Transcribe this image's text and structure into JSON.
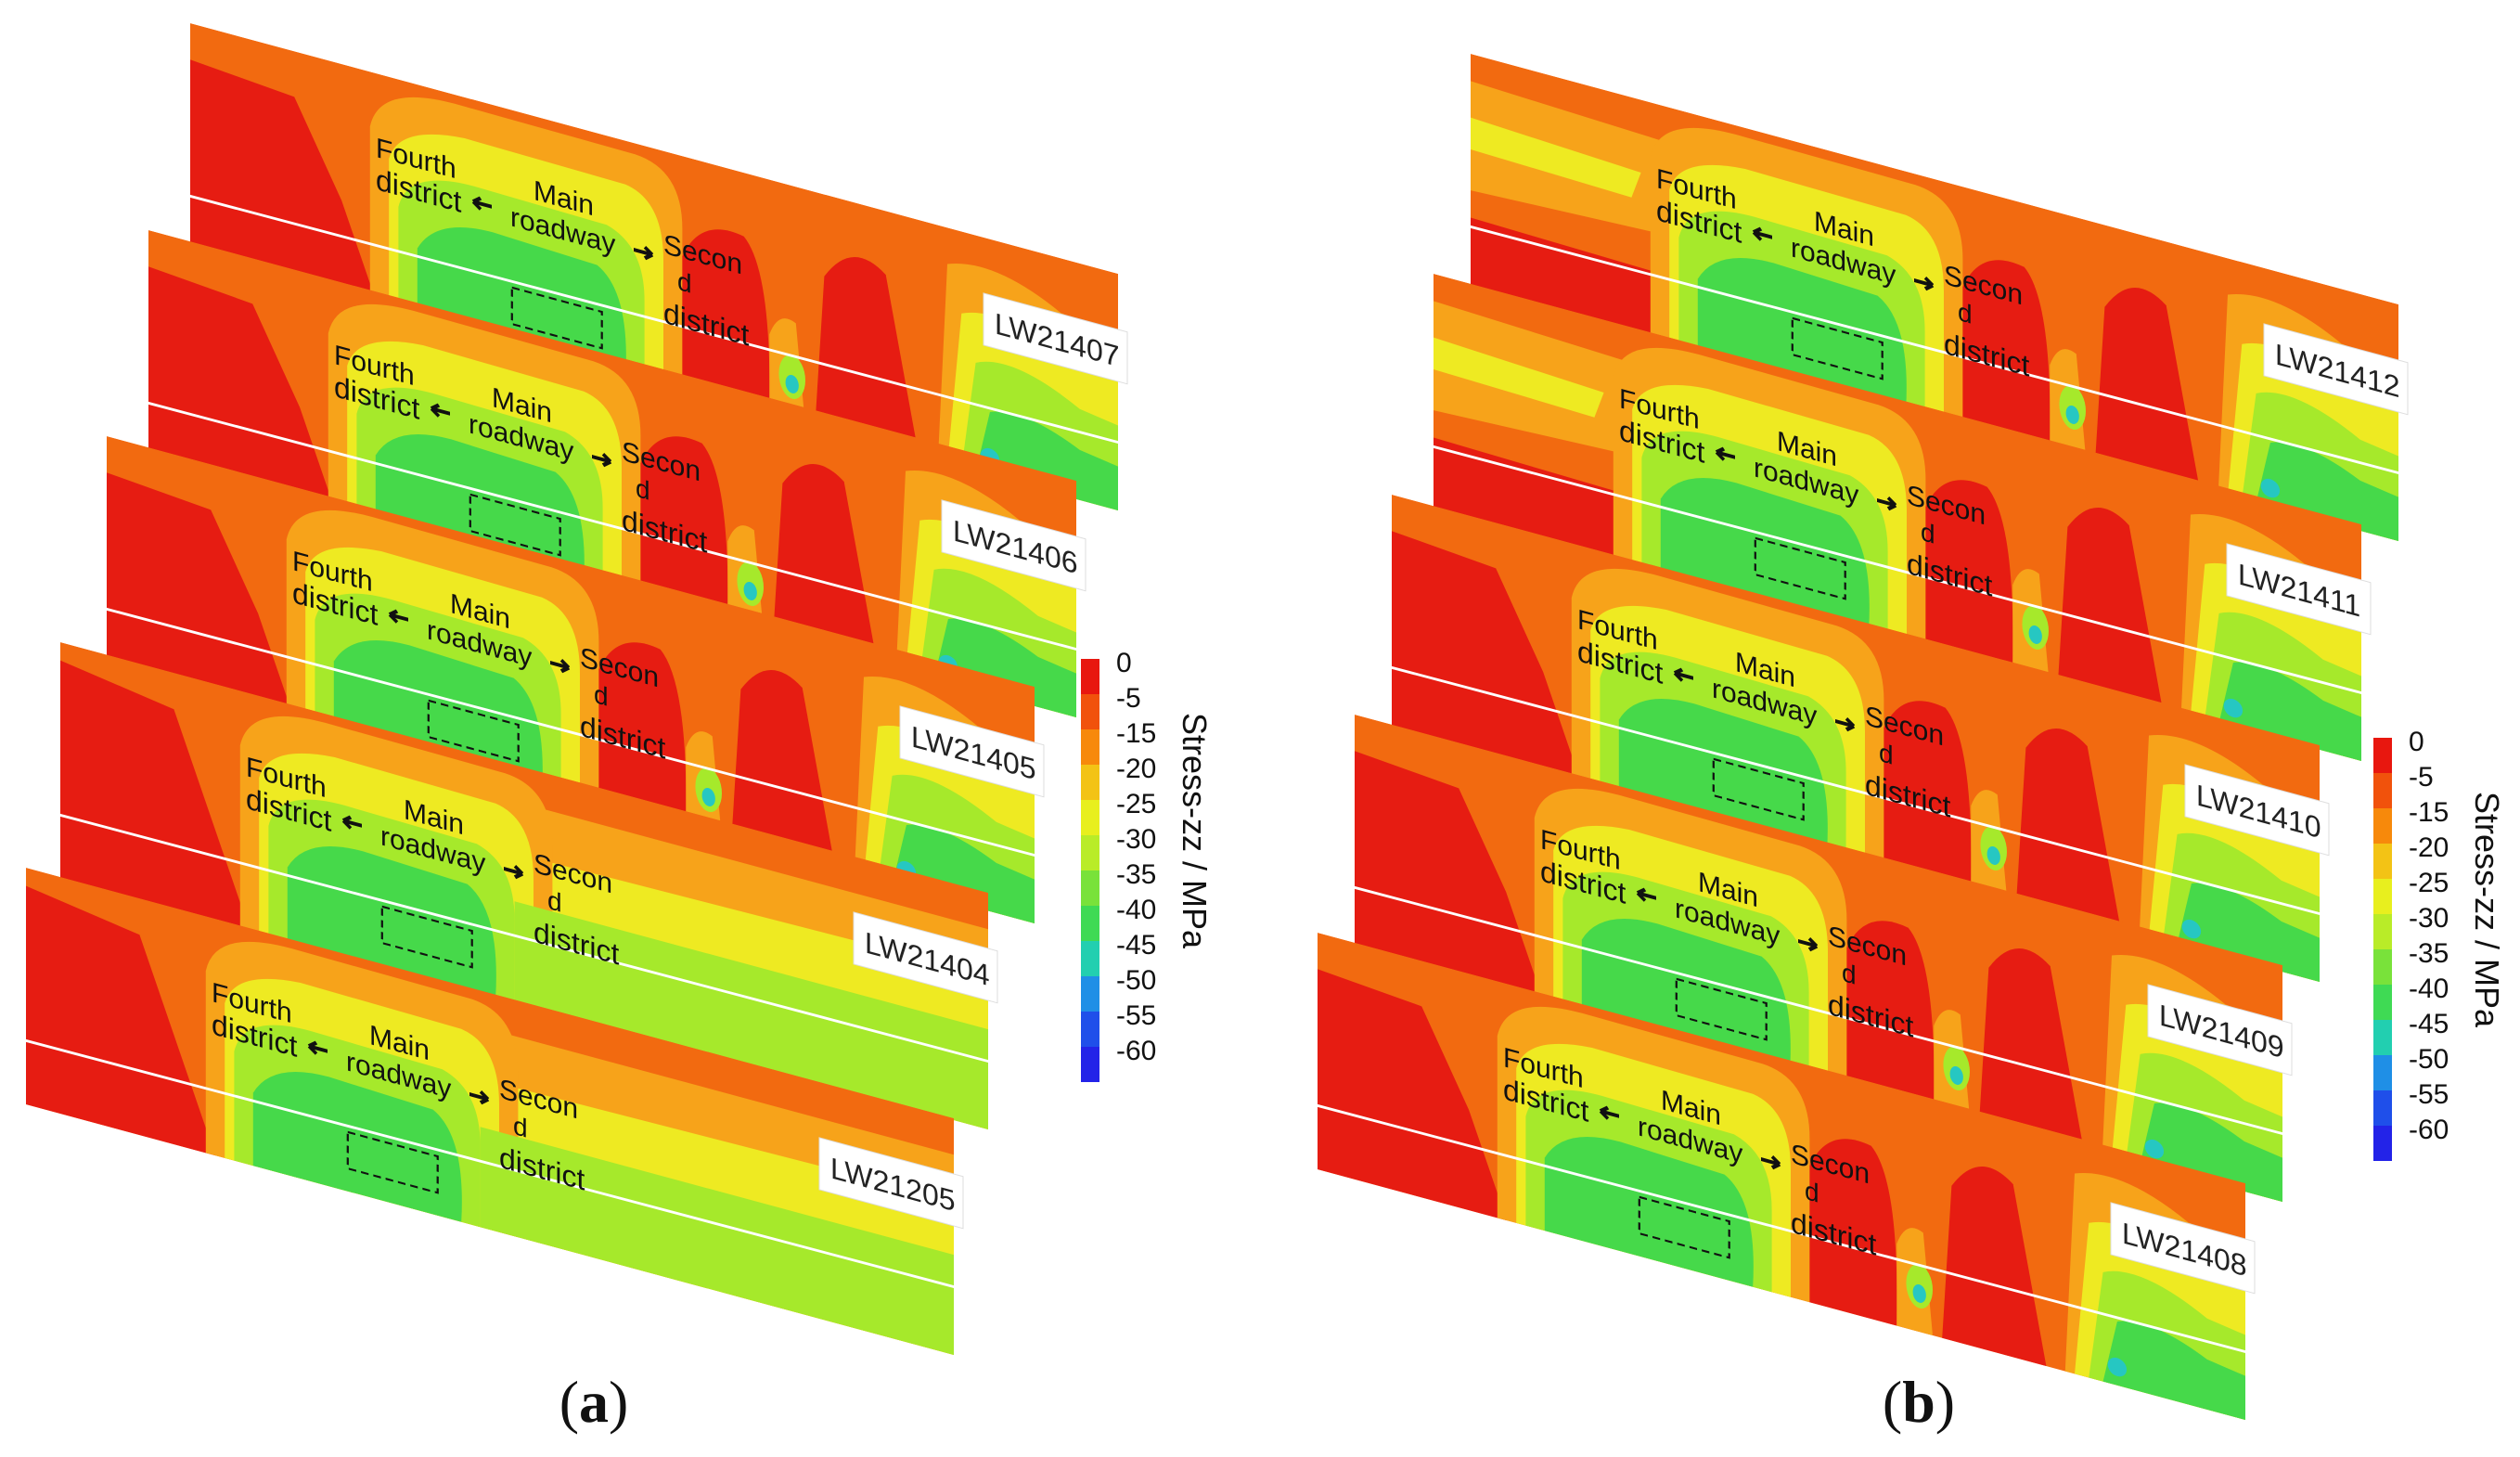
{
  "panels": [
    {
      "caption_letter": "a",
      "slices": [
        {
          "id": "LW21407",
          "label": "LW21407",
          "zone_labels": {
            "fourth": [
              "Fourth",
              "district"
            ],
            "main": [
              "Main",
              "roadway"
            ],
            "second": [
              "Secon",
              "d",
              "district"
            ]
          }
        },
        {
          "id": "LW21406",
          "label": "LW21406",
          "zone_labels": {
            "fourth": [
              "Fourth",
              "district"
            ],
            "main": [
              "Main",
              "roadway"
            ],
            "second": [
              "Secon",
              "d",
              "district"
            ]
          }
        },
        {
          "id": "LW21405",
          "label": "LW21405",
          "zone_labels": {
            "fourth": [
              "Fourth",
              "district"
            ],
            "main": [
              "Main",
              "roadway"
            ],
            "second": [
              "Secon",
              "d",
              "district"
            ]
          }
        },
        {
          "id": "LW21404",
          "label": "LW21404",
          "zone_labels": {
            "fourth": [
              "Fourth",
              "district"
            ],
            "main": [
              "Main",
              "roadway"
            ],
            "second": [
              "Secon",
              "d",
              "district"
            ]
          }
        },
        {
          "id": "LW21205",
          "label": "LW21205",
          "zone_labels": {
            "fourth": [
              "Fourth",
              "district"
            ],
            "main": [
              "Main",
              "roadway"
            ],
            "second": [
              "Secon",
              "d",
              "district"
            ]
          }
        }
      ]
    },
    {
      "caption_letter": "b",
      "slices": [
        {
          "id": "LW21412",
          "label": "LW21412",
          "zone_labels": {
            "fourth": [
              "Fourth",
              "district"
            ],
            "main": [
              "Main",
              "roadway"
            ],
            "second": [
              "Secon",
              "d",
              "district"
            ]
          }
        },
        {
          "id": "LW21411",
          "label": "LW21411",
          "zone_labels": {
            "fourth": [
              "Fourth",
              "district"
            ],
            "main": [
              "Main",
              "roadway"
            ],
            "second": [
              "Secon",
              "d",
              "district"
            ]
          }
        },
        {
          "id": "LW21410",
          "label": "LW21410",
          "zone_labels": {
            "fourth": [
              "Fourth",
              "district"
            ],
            "main": [
              "Main",
              "roadway"
            ],
            "second": [
              "Secon",
              "d",
              "district"
            ]
          }
        },
        {
          "id": "LW21409",
          "label": "LW21409",
          "zone_labels": {
            "fourth": [
              "Fourth",
              "district"
            ],
            "main": [
              "Main",
              "roadway"
            ],
            "second": [
              "Secon",
              "d",
              "district"
            ]
          }
        },
        {
          "id": "LW21408",
          "label": "LW21408",
          "zone_labels": {
            "fourth": [
              "Fourth",
              "district"
            ],
            "main": [
              "Main",
              "roadway"
            ],
            "second": [
              "Secon",
              "d",
              "district"
            ]
          }
        }
      ]
    }
  ],
  "colorbar": {
    "title": "Stress-zz / MPa",
    "ticks": [
      "0",
      "-5",
      "-15",
      "-20",
      "-25",
      "-30",
      "-35",
      "-40",
      "-45",
      "-50",
      "-55",
      "-60"
    ],
    "colors": [
      "#e8170f",
      "#f1520c",
      "#f7890b",
      "#f3c315",
      "#e8ef1e",
      "#b9ec28",
      "#79e23a",
      "#3fda54",
      "#22cfb0",
      "#1f8fe6",
      "#1f4fea",
      "#2323e8"
    ]
  },
  "colors": {
    "red": "#e61c12",
    "orange": "#f26a10",
    "light_orange": "#f7a31a",
    "yellow": "#eeea22",
    "light_green": "#a6e92b",
    "green": "#46d94a",
    "cyan": "#26c7c2",
    "blue": "#1b55e8"
  }
}
